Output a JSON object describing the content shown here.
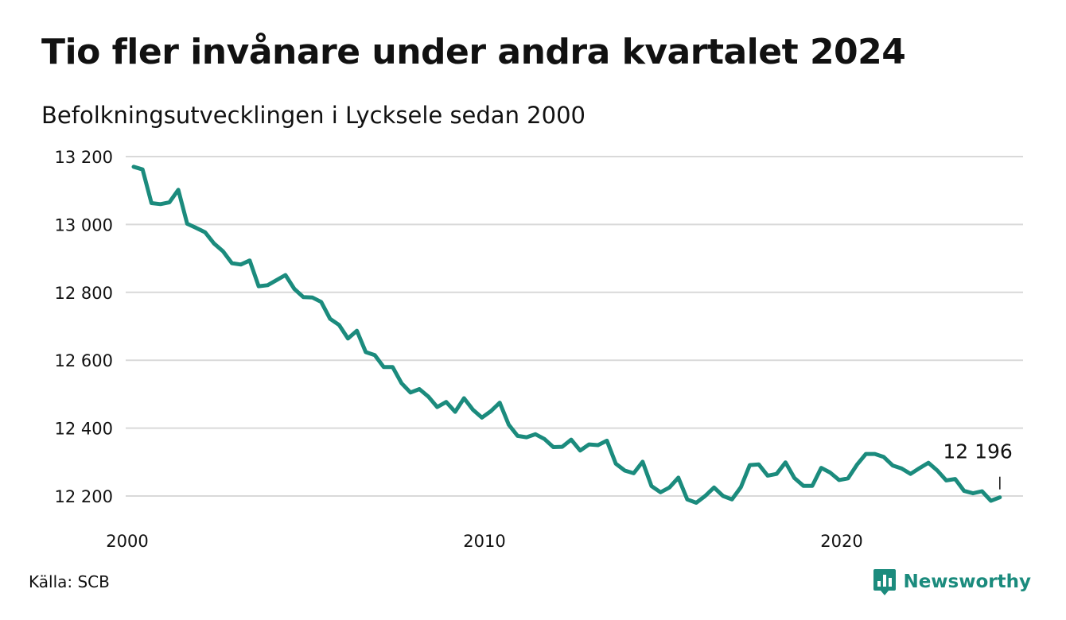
{
  "header": {
    "title": "Tio fler invånare under andra kvartalet 2024",
    "subtitle": "Befolkningsutvecklingen i Lycksele sedan 2000"
  },
  "footer": {
    "source": "Källa: SCB",
    "brand": "Newsworthy",
    "brand_icon": "newsworthy-logo-icon"
  },
  "colors": {
    "line": "#1b8b7d",
    "grid": "#d9d9d9",
    "text": "#111111",
    "brand": "#1b8b7d"
  },
  "chart_data": {
    "type": "line",
    "title": "Tio fler invånare under andra kvartalet 2024",
    "subtitle": "Befolkningsutvecklingen i Lycksele sedan 2000",
    "frequency": "quarterly",
    "x_start": "2000 Q1",
    "x_end": "2024 Q2",
    "ylim": [
      12175,
      13200
    ],
    "y_ticks": [
      {
        "value": 13200,
        "label": "13 200"
      },
      {
        "value": 13000,
        "label": "13 000"
      },
      {
        "value": 12800,
        "label": "12 800"
      },
      {
        "value": 12600,
        "label": "12 600"
      },
      {
        "value": 12400,
        "label": "12 400"
      },
      {
        "value": 12200,
        "label": "12 200"
      }
    ],
    "x_ticks": [
      {
        "value": 2000,
        "label": "2000"
      },
      {
        "value": 2010,
        "label": "2010"
      },
      {
        "value": 2020,
        "label": "2020"
      }
    ],
    "grid": true,
    "legend": "none",
    "series": [
      {
        "values": [
          13170,
          13162,
          13063,
          13060,
          13065,
          13102,
          13002,
          12990,
          12977,
          12944,
          12921,
          12886,
          12882,
          12894,
          12818,
          12821,
          12836,
          12851,
          12810,
          12786,
          12785,
          12772,
          12722,
          12704,
          12664,
          12687,
          12624,
          12615,
          12580,
          12580,
          12532,
          12505,
          12515,
          12493,
          12462,
          12477,
          12448,
          12488,
          12454,
          12431,
          12450,
          12475,
          12410,
          12377,
          12373,
          12382,
          12368,
          12344,
          12345,
          12366,
          12334,
          12352,
          12350,
          12363,
          12295,
          12275,
          12267,
          12301,
          12229,
          12211,
          12225,
          12254,
          12190,
          12180,
          12200,
          12225,
          12200,
          12190,
          12226,
          12291,
          12293,
          12260,
          12265,
          12299,
          12253,
          12230,
          12230,
          12283,
          12269,
          12247,
          12252,
          12292,
          12324,
          12324,
          12315,
          12290,
          12281,
          12265,
          12282,
          12298,
          12275,
          12246,
          12250,
          12215,
          12208,
          12214,
          12186,
          12196
        ]
      }
    ],
    "annotation": {
      "text": "12 196",
      "target": "last",
      "value": 12196
    }
  }
}
